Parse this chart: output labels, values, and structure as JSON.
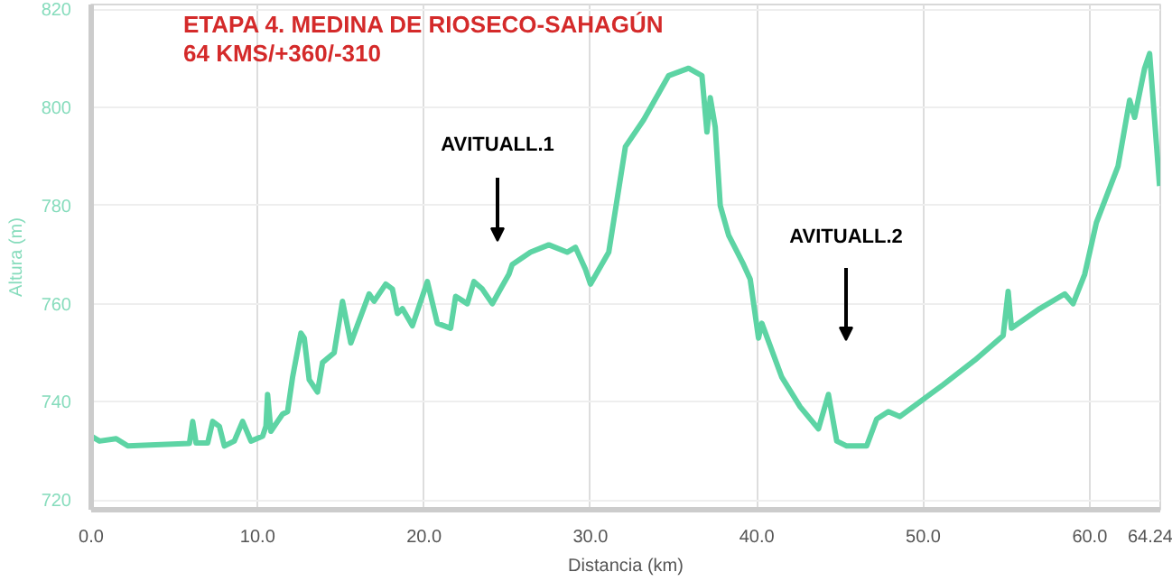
{
  "chart_data": {
    "type": "line",
    "title": "ETAPA 4. MEDINA DE RIOSECO-SAHAGÚN",
    "subtitle": "64 KMS/+360/-310",
    "xlabel": "Distancia (km)",
    "ylabel": "Altura (m)",
    "xlim": [
      0,
      64.24
    ],
    "ylim": [
      718,
      821
    ],
    "xticks": [
      {
        "value": 0,
        "label": "0.0"
      },
      {
        "value": 10,
        "label": "10.0"
      },
      {
        "value": 20,
        "label": "20.0"
      },
      {
        "value": 30,
        "label": "30.0"
      },
      {
        "value": 40,
        "label": "40.0"
      },
      {
        "value": 50,
        "label": "50.0"
      },
      {
        "value": 60,
        "label": "60.0"
      },
      64.24
    ],
    "yticks": [
      720,
      740,
      760,
      780,
      800,
      820
    ],
    "grid": true,
    "marker": "none",
    "line_style": "solid",
    "series": [
      {
        "color": "#5dd4a4",
        "x": [
          0,
          0.5,
          1.5,
          2.2,
          5.9,
          6.1,
          6.3,
          7.0,
          7.3,
          7.7,
          8.0,
          8.6,
          9.1,
          9.6,
          10.3,
          10.5,
          10.6,
          10.8,
          11.2,
          11.5,
          11.8,
          12.1,
          12.6,
          12.8,
          13.1,
          13.6,
          13.9,
          14.6,
          15.1,
          15.6,
          16.7,
          17.0,
          17.7,
          18.1,
          18.4,
          18.7,
          19.3,
          20.2,
          20.8,
          21.6,
          21.9,
          22.6,
          23.0,
          23.5,
          24.1,
          24.6,
          25.1,
          25.3,
          26.4,
          27.5,
          28.6,
          29.1,
          29.7,
          30.0,
          31.1,
          32.1,
          33.2,
          34.7,
          35.9,
          36.7,
          37.0,
          37.2,
          37.5,
          37.8,
          38.3,
          39.2,
          39.6,
          40.1,
          40.3,
          41.5,
          42.6,
          43.7,
          44.3,
          44.8,
          45.4,
          46.6,
          47.2,
          47.9,
          48.6,
          50.2,
          51.2,
          53.1,
          54.8,
          55.1,
          55.3,
          57.0,
          58.5,
          59.0,
          59.7,
          60.4,
          61.7,
          62.4,
          62.7,
          63.3,
          63.6,
          64.2
        ],
        "values": [
          733,
          732,
          732.5,
          731,
          731.5,
          736,
          731.6,
          731.6,
          736,
          735,
          731,
          732,
          736,
          732,
          733,
          735,
          741.5,
          734,
          736,
          737.5,
          738,
          745,
          754,
          753,
          744.5,
          742,
          748,
          750,
          760.5,
          752,
          762,
          760.5,
          764,
          763,
          758,
          759,
          755.5,
          764.5,
          756,
          755,
          761.5,
          760,
          764.5,
          763,
          760,
          763,
          766,
          768,
          770.5,
          772,
          770.5,
          771.5,
          767,
          764,
          770.5,
          792,
          797.5,
          806.5,
          808,
          806.5,
          795,
          802,
          796,
          780,
          774,
          768,
          765,
          753,
          756,
          745,
          739,
          734.5,
          741.5,
          732,
          731,
          731,
          736.5,
          738,
          737,
          741,
          743.5,
          748.5,
          753.5,
          762.5,
          755,
          759,
          762,
          760,
          766,
          776.5,
          788,
          801.5,
          798,
          808,
          811,
          784
        ]
      }
    ],
    "annotations": [
      "AVITUALL.1",
      "AVITUALL.2"
    ]
  }
}
